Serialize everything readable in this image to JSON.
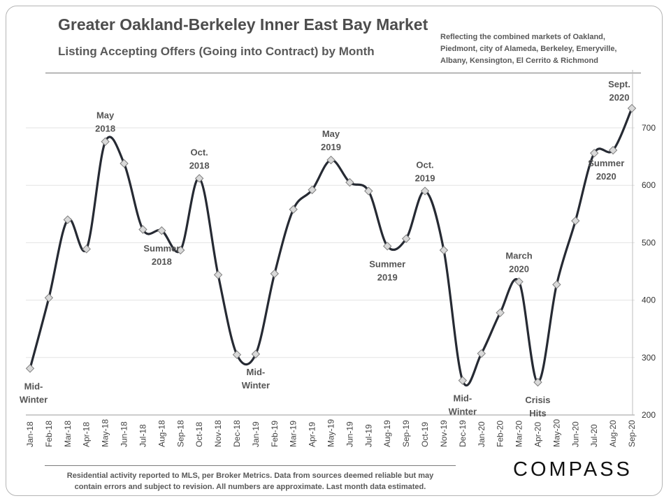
{
  "header": {
    "title": "Greater Oakland-Berkeley Inner East Bay Market",
    "subtitle": "Listing Accepting Offers (Going into Contract) by Month",
    "note_lines": [
      "Reflecting the combined markets of Oakland,",
      "Piedmont, city of Alameda, Berkeley, Emeryville,",
      "Albany, Kensington, El Cerrito & Richmond"
    ]
  },
  "footer": {
    "footnote_lines": [
      "Residential activity reported to MLS, per Broker Metrics. Data from sources deemed reliable but may",
      "contain errors and subject to revision. All numbers are approximate. Last month data estimated."
    ],
    "brand": "COMPASS"
  },
  "chart_data": {
    "type": "line",
    "title": "Greater Oakland-Berkeley Inner East Bay Market",
    "subtitle": "Listing Accepting Offers (Going into Contract) by Month",
    "categories": [
      "Jan-18",
      "Feb-18",
      "Mar-18",
      "Apr-18",
      "May-18",
      "Jun-18",
      "Jul-18",
      "Aug-18",
      "Sep-18",
      "Oct-18",
      "Nov-18",
      "Dec-18",
      "Jan-19",
      "Feb-19",
      "Mar-19",
      "Apr-19",
      "May-19",
      "Jun-19",
      "Jul-19",
      "Aug-19",
      "Sep-19",
      "Oct-19",
      "Nov-19",
      "Dec-19",
      "Jan-20",
      "Feb-20",
      "Mar-20",
      "Apr-20",
      "May-20",
      "Jun-20",
      "Jul-20",
      "Aug-20",
      "Sep-20"
    ],
    "values": [
      281,
      404,
      540,
      489,
      676,
      638,
      523,
      521,
      487,
      612,
      444,
      305,
      306,
      446,
      558,
      592,
      644,
      605,
      590,
      494,
      507,
      590,
      487,
      260,
      307,
      378,
      432,
      257,
      427,
      538,
      656,
      661,
      734
    ],
    "ylim": [
      200,
      750
    ],
    "yticks": [
      200,
      300,
      400,
      500,
      600,
      700
    ],
    "y_axis_side": "right",
    "grid": true,
    "line_color": "#262a33",
    "marker_fill": "#d9d9d9",
    "annotations": [
      {
        "index": 0,
        "lines": [
          "Mid-",
          "Winter"
        ],
        "position": "below"
      },
      {
        "index": 4,
        "lines": [
          "May",
          "2018"
        ],
        "position": "above"
      },
      {
        "index": 7,
        "lines": [
          "Summer",
          "2018"
        ],
        "position": "below"
      },
      {
        "index": 9,
        "lines": [
          "Oct.",
          "2018"
        ],
        "position": "above"
      },
      {
        "index": 12,
        "lines": [
          "Mid-",
          "Winter"
        ],
        "position": "below"
      },
      {
        "index": 16,
        "lines": [
          "May",
          "2019"
        ],
        "position": "above"
      },
      {
        "index": 19,
        "lines": [
          "Summer",
          "2019"
        ],
        "position": "below"
      },
      {
        "index": 21,
        "lines": [
          "Oct.",
          "2019"
        ],
        "position": "above"
      },
      {
        "index": 23,
        "lines": [
          "Mid-",
          "Winter"
        ],
        "position": "below"
      },
      {
        "index": 26,
        "lines": [
          "March",
          "2020"
        ],
        "position": "above"
      },
      {
        "index": 27,
        "lines": [
          "Crisis",
          "Hits"
        ],
        "position": "below"
      },
      {
        "index": 29,
        "lines": [
          "Summer",
          "2020"
        ],
        "position": "right"
      },
      {
        "index": 32,
        "lines": [
          "Sept.",
          "2020"
        ],
        "position": "above"
      }
    ]
  }
}
